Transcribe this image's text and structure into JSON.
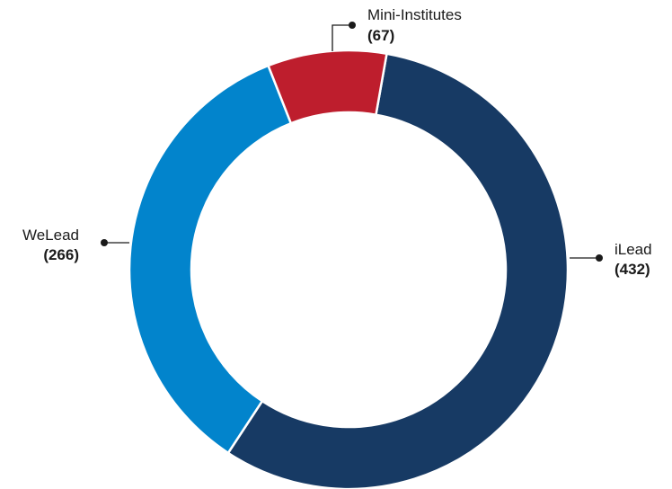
{
  "chart_data": {
    "type": "pie",
    "variant": "donut",
    "title": "",
    "slices": [
      {
        "label": "iLead",
        "value_label": "(432)",
        "value": 432,
        "color": "#173a64"
      },
      {
        "label": "WeLead",
        "value_label": "(266)",
        "value": 266,
        "color": "#0284cc"
      },
      {
        "label": "Mini-Institutes",
        "value_label": "(67)",
        "value": 67,
        "color": "#be1e2d"
      }
    ]
  }
}
